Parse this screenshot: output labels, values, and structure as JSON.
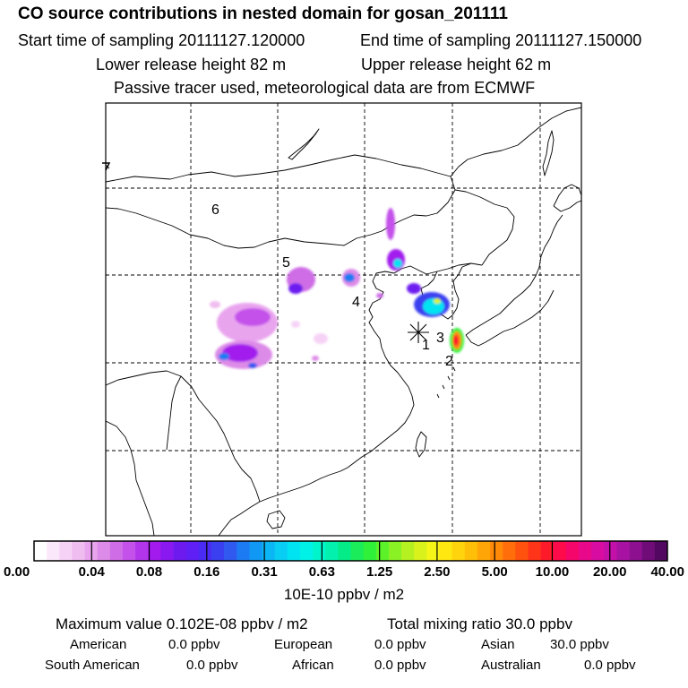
{
  "header": {
    "title": "CO  source contributions in nested domain for gosan_201111",
    "start_label": "Start time of sampling 20111127.120000",
    "end_label": "End time of sampling 20111127.150000",
    "lower_release": "Lower release height   82 m",
    "upper_release": "Upper release height   62 m",
    "tracer_note": "Passive tracer used, meteorological data are from ECMWF"
  },
  "map": {
    "station_marker": "asterisk",
    "region_labels": [
      "1",
      "2",
      "3",
      "4",
      "5",
      "6"
    ]
  },
  "colorbar": {
    "tick_labels": [
      "0.00",
      "0.04",
      "0.08",
      "0.16",
      "0.31",
      "0.63",
      "1.25",
      "2.50",
      "5.00",
      "10.00",
      "20.00",
      "40.00"
    ],
    "unit_label": "10E-10 ppbv / m2",
    "colors": [
      "#ffffff",
      "#fbe9fb",
      "#f6d3f6",
      "#f0bdf0",
      "#e9a4ee",
      "#dd8be8",
      "#cf6de6",
      "#c351ea",
      "#b235ec",
      "#a31aee",
      "#8a18f0",
      "#6d1aef",
      "#5f1ff5",
      "#4a2bf3",
      "#3a3ff0",
      "#2f59ef",
      "#1c7bf2",
      "#1098f4",
      "#0bb6f5",
      "#08cef3",
      "#00e4f2",
      "#00f2e6",
      "#00f5cd",
      "#02f1ae",
      "#04ec88",
      "#1aec5a",
      "#2ff13a",
      "#5bf22a",
      "#8af224",
      "#b5f020",
      "#daf21c",
      "#f5f518",
      "#ffe810",
      "#ffd40c",
      "#ffbe08",
      "#ffa508",
      "#ff8a08",
      "#ff6e0a",
      "#ff520e",
      "#ff3418",
      "#ff1a2a",
      "#ff0a4a",
      "#f5066a",
      "#e9088a",
      "#d80ca0",
      "#c210a8",
      "#a812a2",
      "#8c1090",
      "#700c78",
      "#520860"
    ]
  },
  "footer": {
    "max_value": "Maximum value  0.102E-08 ppbv / m2",
    "total_mixing": "Total mixing ratio       30.0 ppbv",
    "american_label": "American",
    "american_value": "0.0 ppbv",
    "european_label": "European",
    "european_value": "0.0 ppbv",
    "asian_label": "Asian",
    "asian_value": "30.0 ppbv",
    "south_american_label": "South American",
    "south_american_value": "0.0 ppbv",
    "african_label": "African",
    "african_value": "0.0 ppbv",
    "australian_label": "Australian",
    "australian_value": "0.0 ppbv"
  }
}
